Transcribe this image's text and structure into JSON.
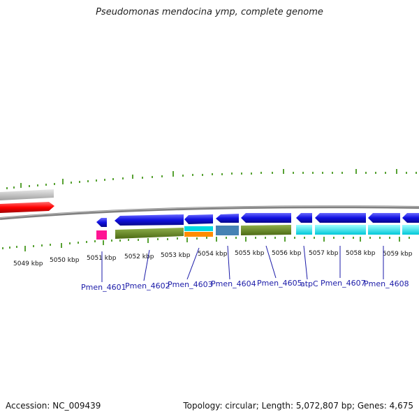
{
  "title": "Pseudomonas mendocina ymp, complete genome",
  "footer": {
    "accession": "Accession: NC_009439",
    "summary": "Topology: circular; Length: 5,072,807 bp; Genes: 4,675"
  },
  "tick_labels": [
    "5049 kbp",
    "5050 kbp",
    "5051 kbp",
    "5052 kbp",
    "5053 kbp",
    "5054 kbp",
    "5055 kbp",
    "5056 kbp",
    "5057 kbp",
    "5058 kbp",
    "5059 kbp"
  ],
  "gene_labels": [
    "Pmen_4601",
    "Pmen_4602",
    "Pmen_4603",
    "Pmen_4604",
    "Pmen_4605",
    "atpC",
    "Pmen_4607",
    "Pmen_4608"
  ],
  "colors": {
    "forward_gene": "#ff1a1a",
    "reverse_gene": "#1a1ae6",
    "cog_grey": "#c8c8c8",
    "cog_olive": "#6b8e23",
    "cog_cyan": "#00ffff",
    "cog_pink": "#ff1493",
    "cog_orange": "#ff8c00",
    "cog_steelblue": "#4682b4",
    "tick_green": "#2e8b00",
    "backbone": "#808080",
    "label_blue": "#1a1aa8"
  }
}
